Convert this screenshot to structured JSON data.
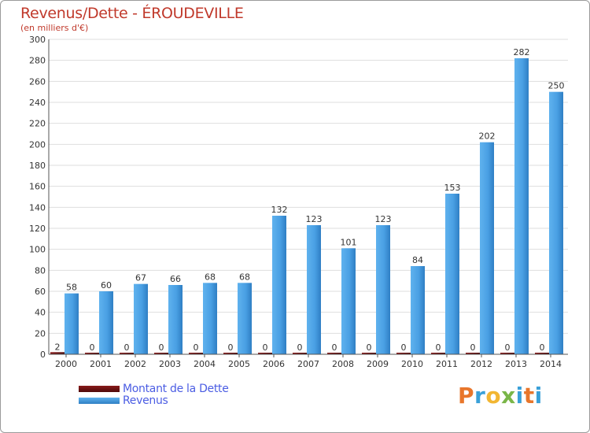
{
  "header": {
    "title": "Revenus/Dette - ÉROUDEVILLE",
    "subtitle": "(en milliers d'€)"
  },
  "legend": {
    "items": [
      {
        "label": "Montant de la Dette",
        "color": "#6b0f0f"
      },
      {
        "label": "Revenus",
        "color": "#4da3e6"
      }
    ]
  },
  "brand": {
    "letters": [
      "P",
      "r",
      "o",
      "x",
      "i",
      "t",
      "i"
    ],
    "colors": [
      "#e8762b",
      "#3aa0d8",
      "#f2b632",
      "#7ab648",
      "#3aa0d8",
      "#e8762b",
      "#3aa0d8"
    ]
  },
  "chart_data": {
    "type": "bar",
    "title": "Revenus/Dette - ÉROUDEVILLE",
    "ylabel": "(en milliers d'€)",
    "ylim": [
      0,
      300
    ],
    "ytick_step": 20,
    "grid": true,
    "categories": [
      "2000",
      "2001",
      "2002",
      "2003",
      "2004",
      "2005",
      "2006",
      "2007",
      "2008",
      "2009",
      "2010",
      "2011",
      "2012",
      "2013",
      "2014"
    ],
    "series": [
      {
        "name": "Montant de la Dette",
        "color": "#6b0f0f",
        "values": [
          2,
          0,
          0,
          0,
          0,
          0,
          0,
          0,
          0,
          0,
          0,
          0,
          0,
          0,
          0
        ]
      },
      {
        "name": "Revenus",
        "color": "#4da3e6",
        "values": [
          58,
          60,
          67,
          66,
          68,
          68,
          132,
          123,
          101,
          123,
          84,
          153,
          202,
          282,
          250
        ]
      }
    ]
  }
}
